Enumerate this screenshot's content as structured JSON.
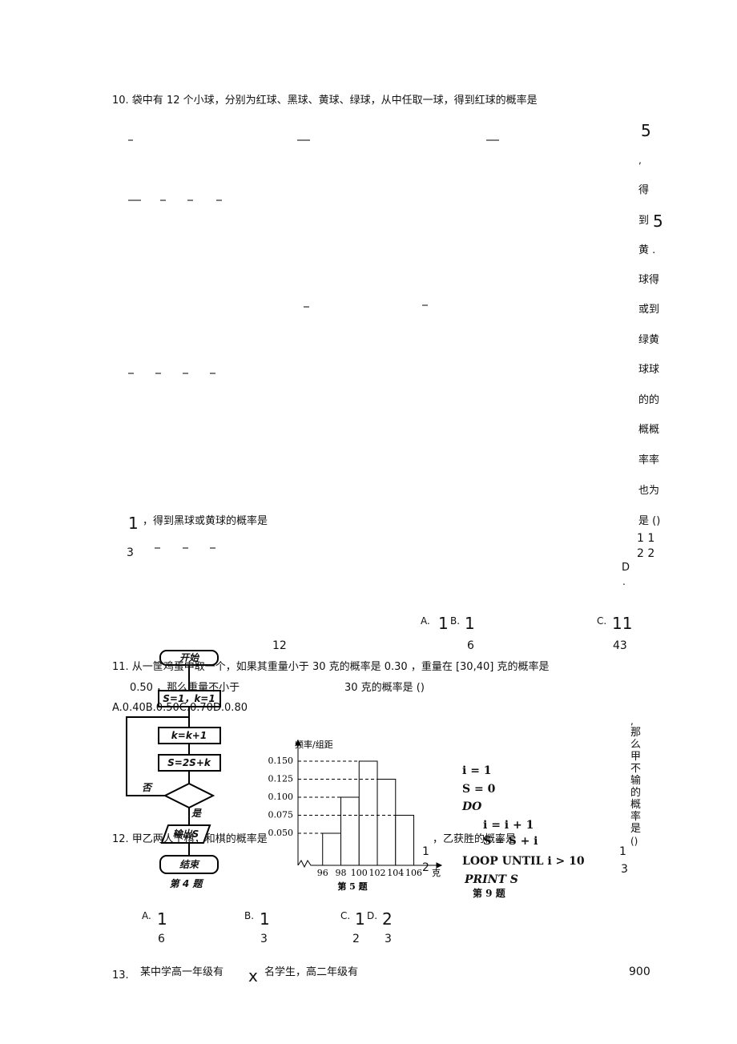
{
  "q10": [
    "10. 袋中有 12 个小球，分别为红球、黑球、黄球、绿球，从中任取一球，得到红球的概率是",
    "5",
    ",",
    "得",
    "到",
    "5",
    "黄 .",
    "球得",
    "或到",
    "绿黄",
    "球球",
    "的的",
    "概概",
    "率率",
    "也为",
    "是 ()",
    "1 1",
    "2 2",
    "D",
    ".",
    "1",
    "，得到黑球或黄球的概率是",
    "3",
    "A.",
    "1",
    "B.",
    "1",
    "C.",
    "11",
    "12",
    "6",
    "43"
  ],
  "q11": [
    "11. 从一筐鸡蛋中取一个，如果其重量小于 30 克的概率是 0.30 ，重量在 [30,40] 克的概率是",
    "0.50 ，那么重量不小于",
    "30 克的概率是 ()",
    "A.0.40B.0.50C.0.70D.0.80"
  ],
  "fig4": [
    "开始",
    "S=1，k=1",
    "k=k+1",
    "S=2S+k",
    "否",
    "是",
    "输出S",
    "结束",
    "第 4 题"
  ],
  "fig5": {
    "type": "histogram",
    "y_label": "频率/组距",
    "x_unit": "克",
    "caption": "第 5 题",
    "bins": [
      96,
      98,
      100,
      102,
      104,
      106
    ],
    "values": [
      0.05,
      0.1,
      0.15,
      0.125,
      0.075
    ],
    "color": "#ffffff",
    "xlim": [
      93.3,
      108.5
    ],
    "ylim": [
      0,
      0.175
    ],
    "yticks": [
      {
        "value": 0.15,
        "label": "0.150"
      },
      {
        "value": 0.125,
        "label": "0.125"
      },
      {
        "value": 0.1,
        "label": "0.100"
      },
      {
        "value": 0.075,
        "label": "0.075"
      },
      {
        "value": 0.05,
        "label": "0.050"
      }
    ],
    "grid": "dashed"
  },
  "fig9": [
    "i = 1",
    "S = 0",
    "DO",
    "i = i + 1",
    "S = S + i",
    "LOOP UNTIL  i > 10",
    "PRINT  S",
    "第 9 题"
  ],
  "q12": [
    "12. 甲乙两人下棋，和棋的概率是",
    "1",
    "2",
    "，乙获胜的概率是",
    ",",
    "那",
    "么",
    "甲",
    "不",
    "输",
    "的",
    "概",
    "率",
    "是",
    "()",
    "1",
    "3",
    "A.",
    "1",
    "6",
    "B.",
    "1",
    "3",
    "C.",
    "1",
    "D.",
    "2",
    "2",
    "3"
  ],
  "q13": [
    "13.",
    "某中学高一年级有",
    "x",
    "名学生，高二年级有",
    "900"
  ]
}
